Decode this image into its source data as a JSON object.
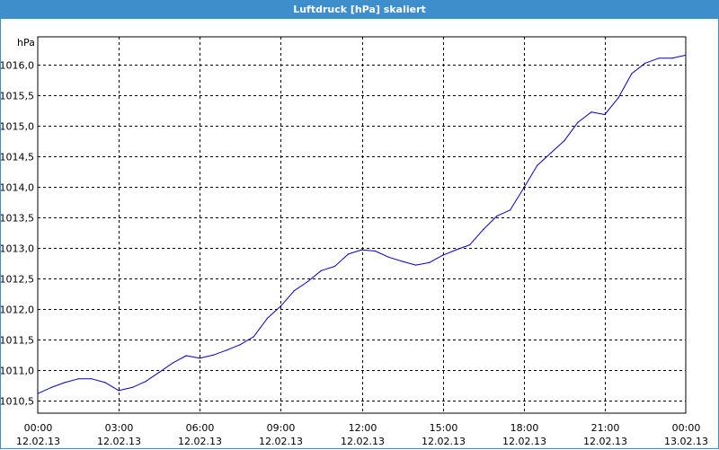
{
  "window": {
    "title": "Luftdruck [hPa] skaliert"
  },
  "chart_data": {
    "type": "line",
    "title": "Luftdruck [hPa] skaliert",
    "ylabel": "hPa",
    "xlabel": "",
    "ylim": [
      1010.3,
      1016.45
    ],
    "xlim": [
      "2013-02-12T00:00",
      "2013-02-13T00:00"
    ],
    "grid": true,
    "y_ticks": [
      "1010,5",
      "1011,0",
      "1011,5",
      "1012,0",
      "1012,5",
      "1013,0",
      "1013,5",
      "1014,0",
      "1014,5",
      "1015,0",
      "1015,5",
      "1016,0"
    ],
    "x_ticks": [
      {
        "time": "00:00",
        "date": "12.02.13"
      },
      {
        "time": "03:00",
        "date": "12.02.13"
      },
      {
        "time": "06:00",
        "date": "12.02.13"
      },
      {
        "time": "09:00",
        "date": "12.02.13"
      },
      {
        "time": "12:00",
        "date": "12.02.13"
      },
      {
        "time": "15:00",
        "date": "12.02.13"
      },
      {
        "time": "18:00",
        "date": "12.02.13"
      },
      {
        "time": "21:00",
        "date": "12.02.13"
      },
      {
        "time": "00:00",
        "date": "13.02.13"
      }
    ],
    "series": [
      {
        "color": "#0000c8",
        "points": [
          [
            "2013-02-12T00:00",
            1010.62
          ],
          [
            "2013-02-12T00:30",
            1010.72
          ],
          [
            "2013-02-12T01:00",
            1010.8
          ],
          [
            "2013-02-12T01:30",
            1010.86
          ],
          [
            "2013-02-12T02:00",
            1010.86
          ],
          [
            "2013-02-12T02:30",
            1010.8
          ],
          [
            "2013-02-12T03:00",
            1010.67
          ],
          [
            "2013-02-12T03:30",
            1010.72
          ],
          [
            "2013-02-12T04:00",
            1010.82
          ],
          [
            "2013-02-12T04:30",
            1010.97
          ],
          [
            "2013-02-12T05:00",
            1011.12
          ],
          [
            "2013-02-12T05:30",
            1011.24
          ],
          [
            "2013-02-12T06:00",
            1011.2
          ],
          [
            "2013-02-12T06:30",
            1011.25
          ],
          [
            "2013-02-12T07:00",
            1011.33
          ],
          [
            "2013-02-12T07:30",
            1011.42
          ],
          [
            "2013-02-12T08:00",
            1011.55
          ],
          [
            "2013-02-12T08:30",
            1011.85
          ],
          [
            "2013-02-12T09:00",
            1012.05
          ],
          [
            "2013-02-12T09:30",
            1012.3
          ],
          [
            "2013-02-12T10:00",
            1012.45
          ],
          [
            "2013-02-12T10:30",
            1012.63
          ],
          [
            "2013-02-12T11:00",
            1012.7
          ],
          [
            "2013-02-12T11:30",
            1012.9
          ],
          [
            "2013-02-12T12:00",
            1012.97
          ],
          [
            "2013-02-12T12:30",
            1012.95
          ],
          [
            "2013-02-12T13:00",
            1012.85
          ],
          [
            "2013-02-12T13:30",
            1012.78
          ],
          [
            "2013-02-12T14:00",
            1012.72
          ],
          [
            "2013-02-12T14:30",
            1012.76
          ],
          [
            "2013-02-12T15:00",
            1012.88
          ],
          [
            "2013-02-12T15:30",
            1012.97
          ],
          [
            "2013-02-12T16:00",
            1013.05
          ],
          [
            "2013-02-12T16:30",
            1013.3
          ],
          [
            "2013-02-12T17:00",
            1013.52
          ],
          [
            "2013-02-12T17:30",
            1013.62
          ],
          [
            "2013-02-12T18:00",
            1013.98
          ],
          [
            "2013-02-12T18:30",
            1014.35
          ],
          [
            "2013-02-12T19:00",
            1014.55
          ],
          [
            "2013-02-12T19:30",
            1014.75
          ],
          [
            "2013-02-12T20:00",
            1015.05
          ],
          [
            "2013-02-12T20:30",
            1015.22
          ],
          [
            "2013-02-12T21:00",
            1015.18
          ],
          [
            "2013-02-12T21:30",
            1015.45
          ],
          [
            "2013-02-12T22:00",
            1015.85
          ],
          [
            "2013-02-12T22:30",
            1016.02
          ],
          [
            "2013-02-12T23:00",
            1016.1
          ],
          [
            "2013-02-12T23:30",
            1016.1
          ],
          [
            "2013-02-13T00:00",
            1016.15
          ]
        ]
      }
    ]
  }
}
